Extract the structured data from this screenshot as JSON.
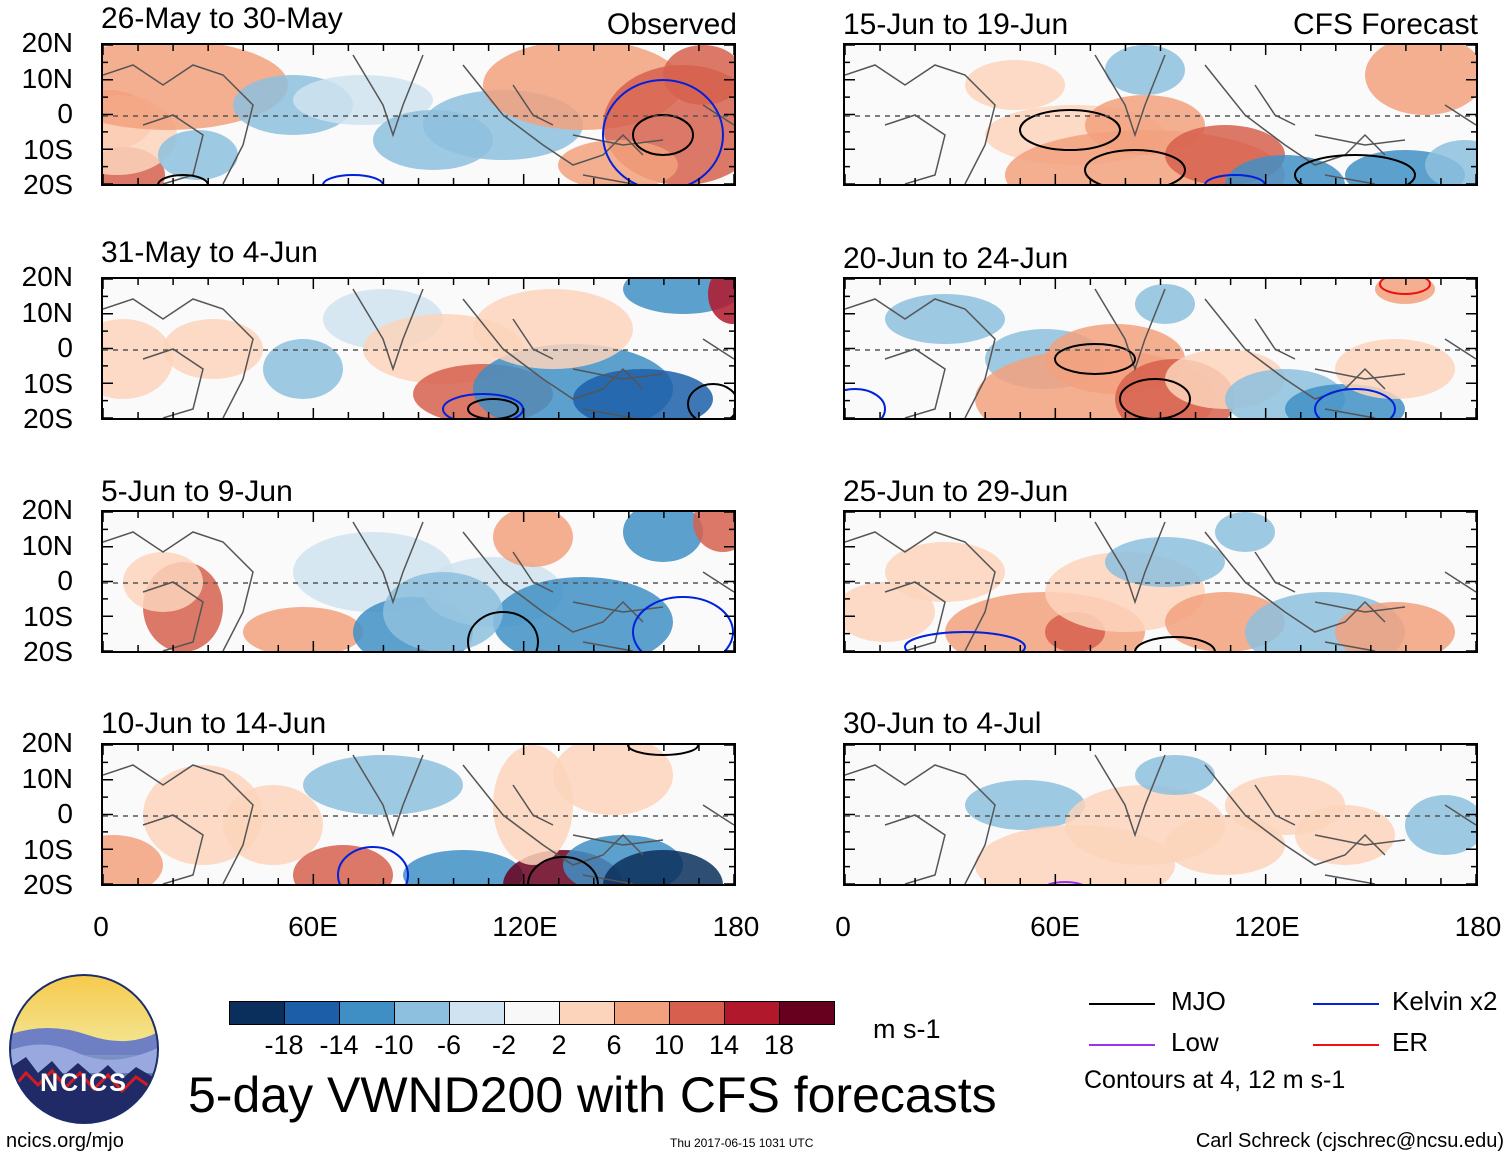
{
  "chart_data": {
    "type": "heatmap",
    "title": "5-day VWND200 with CFS forecasts",
    "units": "m s-1",
    "observed_label": "Observed",
    "forecast_label": "CFS Forecast",
    "lat_ticks": [
      "20N",
      "10N",
      "0",
      "10S",
      "20S"
    ],
    "lon_ticks": [
      "0",
      "60E",
      "120E",
      "180"
    ],
    "lon_range": [
      0,
      180
    ],
    "lat_range": [
      -20,
      20
    ],
    "colorbar": {
      "labels": [
        "-18",
        "-14",
        "-10",
        "-6",
        "-2",
        "2",
        "6",
        "10",
        "14",
        "18"
      ],
      "colors": [
        "#0b2f5c",
        "#1c5fa8",
        "#3f8fc5",
        "#8dc0de",
        "#cfe3f0",
        "#f8f8f8",
        "#fcd3bb",
        "#f2a17e",
        "#d6604d",
        "#b2182b",
        "#67001f"
      ]
    },
    "legend": [
      {
        "label": "MJO",
        "color": "#000000"
      },
      {
        "label": "Kelvin x2",
        "color": "#0022dd"
      },
      {
        "label": "Low",
        "color": "#9933ee"
      },
      {
        "label": "ER",
        "color": "#ee1111"
      }
    ],
    "contour_note": "Contours at 4, 12 m s-1",
    "panels": [
      {
        "title": "26-May to 30-May",
        "group": "observed"
      },
      {
        "title": "31-May to 4-Jun",
        "group": "observed"
      },
      {
        "title": "5-Jun to 9-Jun",
        "group": "observed"
      },
      {
        "title": "10-Jun to 14-Jun",
        "group": "observed"
      },
      {
        "title": "15-Jun to 19-Jun",
        "group": "forecast"
      },
      {
        "title": "20-Jun to 24-Jun",
        "group": "forecast"
      },
      {
        "title": "25-Jun to 29-Jun",
        "group": "forecast"
      },
      {
        "title": "30-Jun to 4-Jul",
        "group": "forecast"
      }
    ]
  },
  "footer": {
    "logo_text": "NCICS",
    "url": "ncics.org/mjo",
    "timestamp": "Thu 2017-06-15 1031 UTC",
    "author": "Carl Schreck (cjschrec@ncsu.edu)"
  }
}
